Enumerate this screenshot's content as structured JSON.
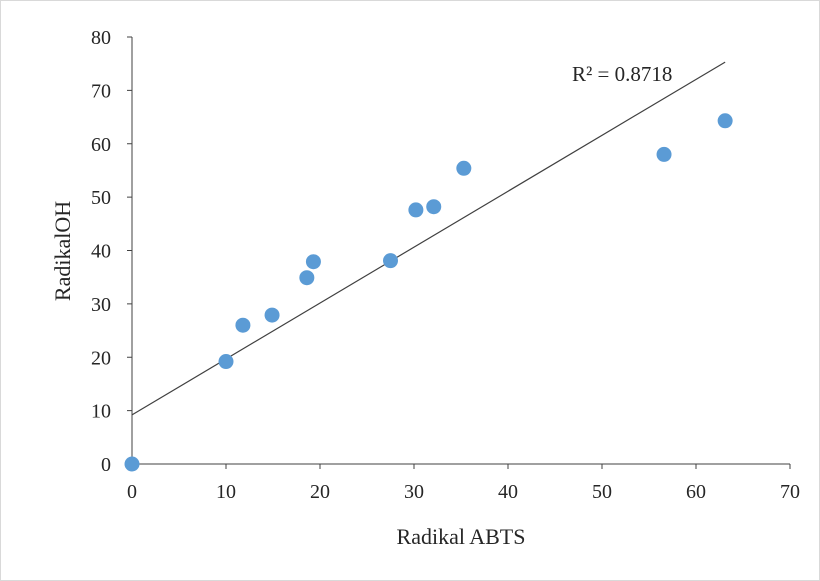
{
  "chart_data": {
    "type": "scatter",
    "title": "",
    "xlabel": "Radikal ABTS",
    "ylabel": "RadikalOH",
    "xlim": [
      0,
      70
    ],
    "ylim": [
      0,
      80
    ],
    "x_ticks": [
      0,
      10,
      20,
      30,
      40,
      50,
      60,
      70
    ],
    "y_ticks": [
      0,
      10,
      20,
      30,
      40,
      50,
      60,
      70,
      80
    ],
    "grid": false,
    "legend": "none",
    "series": [
      {
        "color": "#5b9bd5",
        "points": [
          {
            "x": 0,
            "y": 0
          },
          {
            "x": 10.0,
            "y": 19.2
          },
          {
            "x": 11.8,
            "y": 26.0
          },
          {
            "x": 14.9,
            "y": 27.9
          },
          {
            "x": 18.6,
            "y": 34.9
          },
          {
            "x": 19.3,
            "y": 37.9
          },
          {
            "x": 27.5,
            "y": 38.1
          },
          {
            "x": 30.2,
            "y": 47.6
          },
          {
            "x": 32.1,
            "y": 48.2
          },
          {
            "x": 35.3,
            "y": 55.4
          },
          {
            "x": 56.6,
            "y": 58.0
          },
          {
            "x": 63.1,
            "y": 64.3
          }
        ]
      }
    ],
    "trendline": {
      "type": "linear",
      "color": "#404040",
      "x_start": 0,
      "x_end": 63.1,
      "y_start": 9.2,
      "y_end": 75.3,
      "label": "R² = 0.8718"
    }
  }
}
